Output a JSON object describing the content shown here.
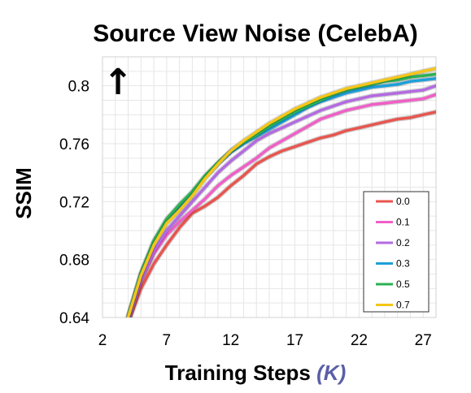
{
  "chart_data": {
    "type": "line",
    "title": "Source View Noise (CelebA)",
    "xlabel": "Training Steps",
    "xlabel_unit": "(K)",
    "ylabel": "SSIM",
    "xlim": [
      2,
      28
    ],
    "ylim": [
      0.64,
      0.82
    ],
    "x_ticks": [
      "2",
      "7",
      "12",
      "17",
      "22",
      "27"
    ],
    "y_ticks": [
      "0.64",
      "0.68",
      "0.72",
      "0.76",
      "0.8"
    ],
    "grid": true,
    "legend_position": "bottom-right",
    "arrow": "↑",
    "x": [
      4,
      5,
      6,
      7,
      8,
      9,
      10,
      11,
      12,
      13,
      14,
      15,
      16,
      17,
      18,
      19,
      20,
      21,
      22,
      23,
      24,
      25,
      26,
      27,
      28
    ],
    "series": [
      {
        "name": "0.0",
        "color": "#e8554e",
        "values": [
          0.636,
          0.66,
          0.677,
          0.69,
          0.702,
          0.712,
          0.717,
          0.723,
          0.731,
          0.738,
          0.746,
          0.751,
          0.755,
          0.758,
          0.761,
          0.764,
          0.766,
          0.769,
          0.771,
          0.773,
          0.775,
          0.777,
          0.778,
          0.78,
          0.782
        ]
      },
      {
        "name": "0.1",
        "color": "#f05fc8",
        "values": [
          0.637,
          0.665,
          0.684,
          0.697,
          0.706,
          0.714,
          0.722,
          0.731,
          0.738,
          0.744,
          0.75,
          0.757,
          0.762,
          0.767,
          0.772,
          0.777,
          0.78,
          0.783,
          0.785,
          0.787,
          0.788,
          0.789,
          0.79,
          0.791,
          0.794
        ]
      },
      {
        "name": "0.2",
        "color": "#b36ae2",
        "values": [
          0.637,
          0.666,
          0.686,
          0.7,
          0.71,
          0.72,
          0.73,
          0.74,
          0.748,
          0.755,
          0.762,
          0.767,
          0.771,
          0.775,
          0.779,
          0.783,
          0.786,
          0.789,
          0.791,
          0.793,
          0.794,
          0.795,
          0.796,
          0.797,
          0.8
        ]
      },
      {
        "name": "0.3",
        "color": "#1e9fd8",
        "values": [
          0.64,
          0.67,
          0.692,
          0.707,
          0.716,
          0.726,
          0.737,
          0.746,
          0.754,
          0.76,
          0.765,
          0.77,
          0.775,
          0.78,
          0.785,
          0.789,
          0.792,
          0.795,
          0.797,
          0.799,
          0.8,
          0.801,
          0.803,
          0.804,
          0.805
        ]
      },
      {
        "name": "0.5",
        "color": "#2bb152",
        "values": [
          0.641,
          0.671,
          0.693,
          0.708,
          0.718,
          0.727,
          0.738,
          0.747,
          0.755,
          0.761,
          0.766,
          0.772,
          0.777,
          0.782,
          0.786,
          0.79,
          0.794,
          0.797,
          0.799,
          0.801,
          0.803,
          0.804,
          0.806,
          0.807,
          0.808
        ]
      },
      {
        "name": "0.7",
        "color": "#f5c518",
        "values": [
          0.64,
          0.669,
          0.69,
          0.705,
          0.714,
          0.724,
          0.736,
          0.746,
          0.755,
          0.762,
          0.768,
          0.774,
          0.779,
          0.784,
          0.788,
          0.792,
          0.795,
          0.798,
          0.8,
          0.802,
          0.804,
          0.806,
          0.808,
          0.81,
          0.812
        ]
      }
    ]
  }
}
